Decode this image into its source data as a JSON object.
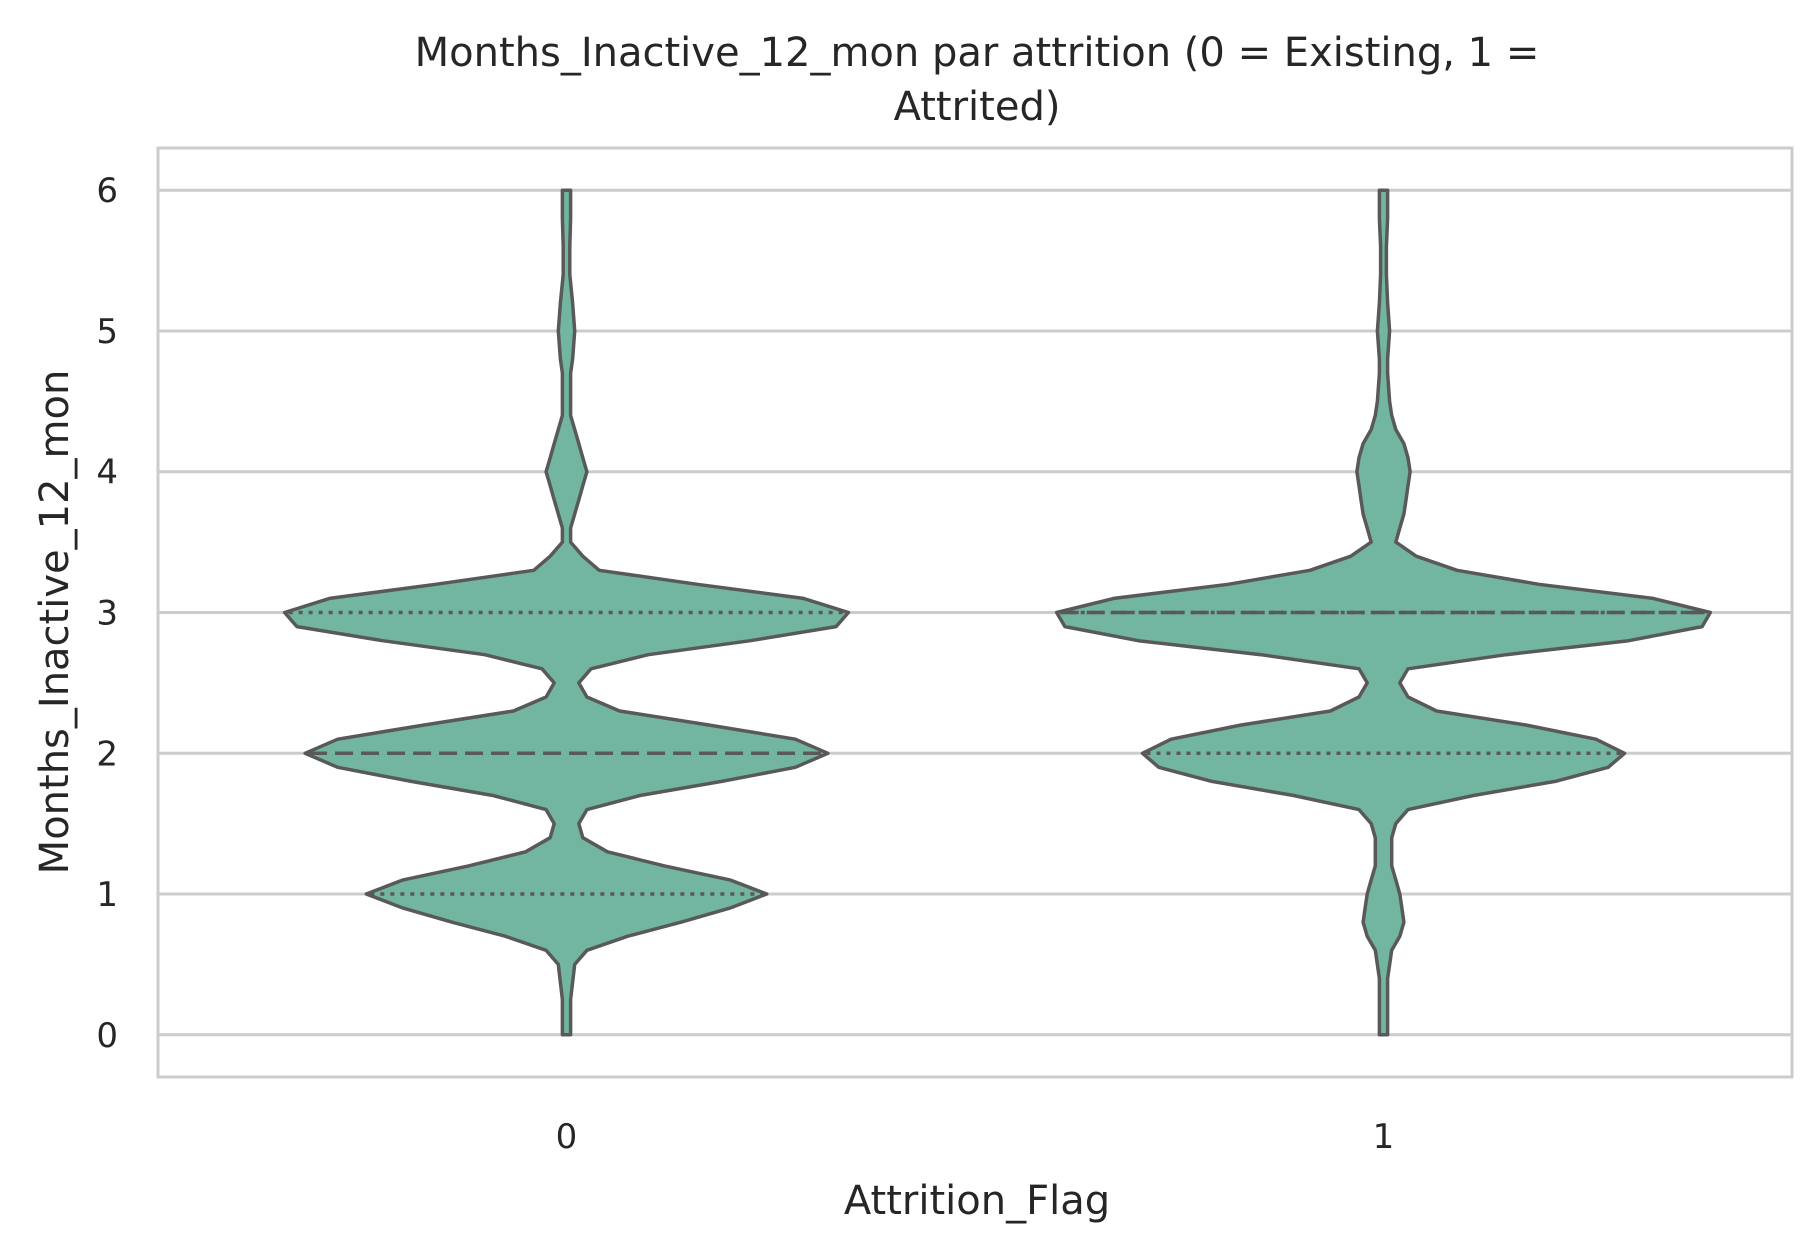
{
  "chart_data": {
    "type": "violin",
    "title_line1": "Months_Inactive_12_mon par attrition (0 = Existing, 1 =",
    "title_line2": "Attrited)",
    "xlabel": "Attrition_Flag",
    "ylabel": "Months_Inactive_12_mon",
    "categories": [
      "0",
      "1"
    ],
    "y_ticks": [
      "0",
      "1",
      "2",
      "3",
      "4",
      "5",
      "6"
    ],
    "ylim": [
      -0.3,
      6.3
    ],
    "grid": true,
    "inner": "quartile",
    "colors": {
      "fill": "#72b6a1",
      "outline": "#595959",
      "grid": "#cccccc",
      "frame": "#cccccc"
    },
    "violins": [
      {
        "category": "0",
        "min": 0,
        "max": 6,
        "quartiles": {
          "q1": 1,
          "median": 2,
          "q3": 3
        },
        "half_width": [
          [
            0,
            0.01
          ],
          [
            0.25,
            0.01
          ],
          [
            0.5,
            0.02
          ],
          [
            0.6,
            0.05
          ],
          [
            0.7,
            0.15
          ],
          [
            0.8,
            0.28
          ],
          [
            0.9,
            0.4
          ],
          [
            1.0,
            0.49
          ],
          [
            1.1,
            0.4
          ],
          [
            1.2,
            0.24
          ],
          [
            1.3,
            0.1
          ],
          [
            1.4,
            0.04
          ],
          [
            1.5,
            0.03
          ],
          [
            1.6,
            0.05
          ],
          [
            1.7,
            0.18
          ],
          [
            1.8,
            0.38
          ],
          [
            1.9,
            0.56
          ],
          [
            2.0,
            0.64
          ],
          [
            2.1,
            0.56
          ],
          [
            2.2,
            0.35
          ],
          [
            2.3,
            0.13
          ],
          [
            2.4,
            0.05
          ],
          [
            2.5,
            0.03
          ],
          [
            2.6,
            0.06
          ],
          [
            2.7,
            0.2
          ],
          [
            2.8,
            0.45
          ],
          [
            2.9,
            0.66
          ],
          [
            3.0,
            0.69
          ],
          [
            3.1,
            0.58
          ],
          [
            3.2,
            0.32
          ],
          [
            3.3,
            0.08
          ],
          [
            3.4,
            0.04
          ],
          [
            3.5,
            0.01
          ],
          [
            3.6,
            0.01
          ],
          [
            3.7,
            0.02
          ],
          [
            3.8,
            0.03
          ],
          [
            3.9,
            0.04
          ],
          [
            4.0,
            0.05
          ],
          [
            4.1,
            0.04
          ],
          [
            4.2,
            0.03
          ],
          [
            4.3,
            0.02
          ],
          [
            4.4,
            0.01
          ],
          [
            4.5,
            0.01
          ],
          [
            4.7,
            0.01
          ],
          [
            4.8,
            0.015
          ],
          [
            5.0,
            0.02
          ],
          [
            5.2,
            0.015
          ],
          [
            5.4,
            0.008
          ],
          [
            5.6,
            0.008
          ],
          [
            5.8,
            0.01
          ],
          [
            6.0,
            0.01
          ]
        ]
      },
      {
        "category": "1",
        "min": 0,
        "max": 6,
        "quartiles": {
          "q1": 2,
          "median": 3,
          "q3": 3
        },
        "half_width": [
          [
            0,
            0.01
          ],
          [
            0.2,
            0.01
          ],
          [
            0.4,
            0.01
          ],
          [
            0.6,
            0.02
          ],
          [
            0.7,
            0.04
          ],
          [
            0.8,
            0.05
          ],
          [
            0.9,
            0.045
          ],
          [
            1.0,
            0.04
          ],
          [
            1.1,
            0.03
          ],
          [
            1.2,
            0.02
          ],
          [
            1.3,
            0.02
          ],
          [
            1.4,
            0.02
          ],
          [
            1.5,
            0.03
          ],
          [
            1.6,
            0.06
          ],
          [
            1.7,
            0.22
          ],
          [
            1.8,
            0.42
          ],
          [
            1.9,
            0.55
          ],
          [
            2.0,
            0.59
          ],
          [
            2.1,
            0.52
          ],
          [
            2.2,
            0.35
          ],
          [
            2.3,
            0.13
          ],
          [
            2.4,
            0.06
          ],
          [
            2.5,
            0.04
          ],
          [
            2.6,
            0.06
          ],
          [
            2.7,
            0.3
          ],
          [
            2.8,
            0.6
          ],
          [
            2.9,
            0.78
          ],
          [
            3.0,
            0.8
          ],
          [
            3.1,
            0.66
          ],
          [
            3.2,
            0.38
          ],
          [
            3.3,
            0.18
          ],
          [
            3.4,
            0.08
          ],
          [
            3.5,
            0.03
          ],
          [
            3.6,
            0.04
          ],
          [
            3.7,
            0.05
          ],
          [
            3.8,
            0.055
          ],
          [
            3.9,
            0.06
          ],
          [
            4.0,
            0.065
          ],
          [
            4.1,
            0.06
          ],
          [
            4.2,
            0.05
          ],
          [
            4.3,
            0.03
          ],
          [
            4.4,
            0.02
          ],
          [
            4.5,
            0.015
          ],
          [
            4.7,
            0.01
          ],
          [
            4.8,
            0.01
          ],
          [
            5.0,
            0.015
          ],
          [
            5.2,
            0.01
          ],
          [
            5.4,
            0.007
          ],
          [
            5.6,
            0.007
          ],
          [
            5.8,
            0.01
          ],
          [
            6.0,
            0.01
          ]
        ]
      }
    ]
  }
}
